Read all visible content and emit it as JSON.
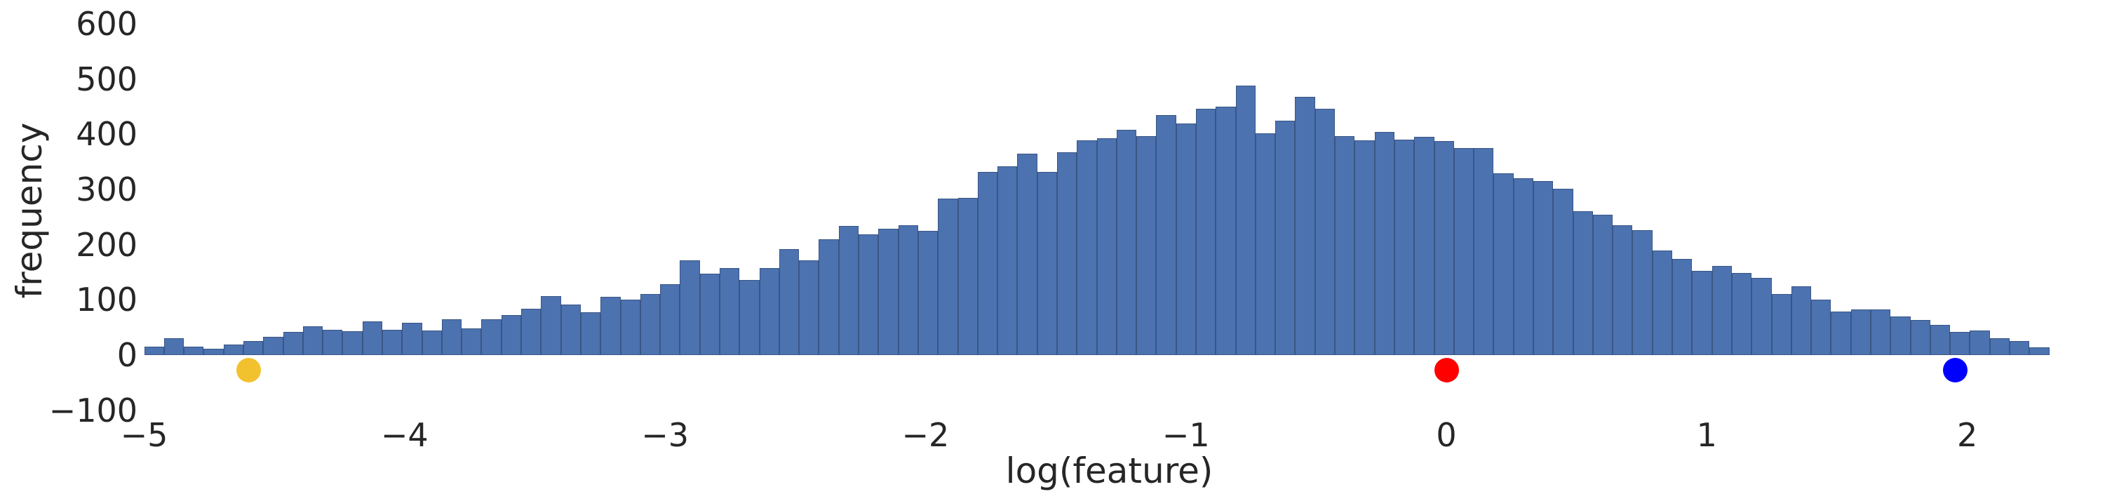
{
  "figure": {
    "background": "#ffffff",
    "text_color": "#262626"
  },
  "chart_data": {
    "type": "bar",
    "subtype": "histogram",
    "title": "",
    "xlabel": "log(feature)",
    "ylabel": "frequency",
    "grid": false,
    "legend": "none",
    "bin_start": -5.0,
    "bin_width": 0.0762,
    "xlim": [
      -5.25,
      2.53
    ],
    "ylim": [
      -100,
      645
    ],
    "yticks": [
      600,
      500,
      400,
      300,
      200,
      100,
      0,
      -100
    ],
    "xticks": [
      -5,
      -4,
      -3,
      -2,
      -1,
      0,
      1,
      2
    ],
    "bar_color": "#4C72B0",
    "bar_edge_color": "#3A5684",
    "values": [
      15,
      30,
      15,
      12,
      19,
      26,
      33,
      42,
      52,
      46,
      43,
      61,
      46,
      58,
      45,
      65,
      48,
      65,
      72,
      84,
      107,
      92,
      78,
      106,
      100,
      110,
      128,
      172,
      148,
      158,
      136,
      158,
      192,
      172,
      210,
      234,
      218,
      229,
      235,
      225,
      283,
      285,
      332,
      342,
      365,
      332,
      367,
      389,
      392,
      408,
      397,
      435,
      419,
      446,
      450,
      488,
      401,
      424,
      468,
      446,
      397,
      389,
      404,
      390,
      395,
      388,
      375,
      375,
      329,
      320,
      315,
      301,
      261,
      254,
      235,
      226,
      189,
      174,
      153,
      162,
      149,
      140,
      111,
      125,
      100,
      79,
      82,
      83,
      70,
      64,
      55,
      42,
      45,
      31,
      26,
      14
    ],
    "markers": [
      {
        "name": "yellow-marker",
        "x": -4.6,
        "y": -27,
        "color": "#F2C22E"
      },
      {
        "name": "red-marker",
        "x": 0.0,
        "y": -27,
        "color": "#FF0000"
      },
      {
        "name": "blue-marker",
        "x": 1.955,
        "y": -27,
        "color": "#0000FF"
      }
    ]
  }
}
